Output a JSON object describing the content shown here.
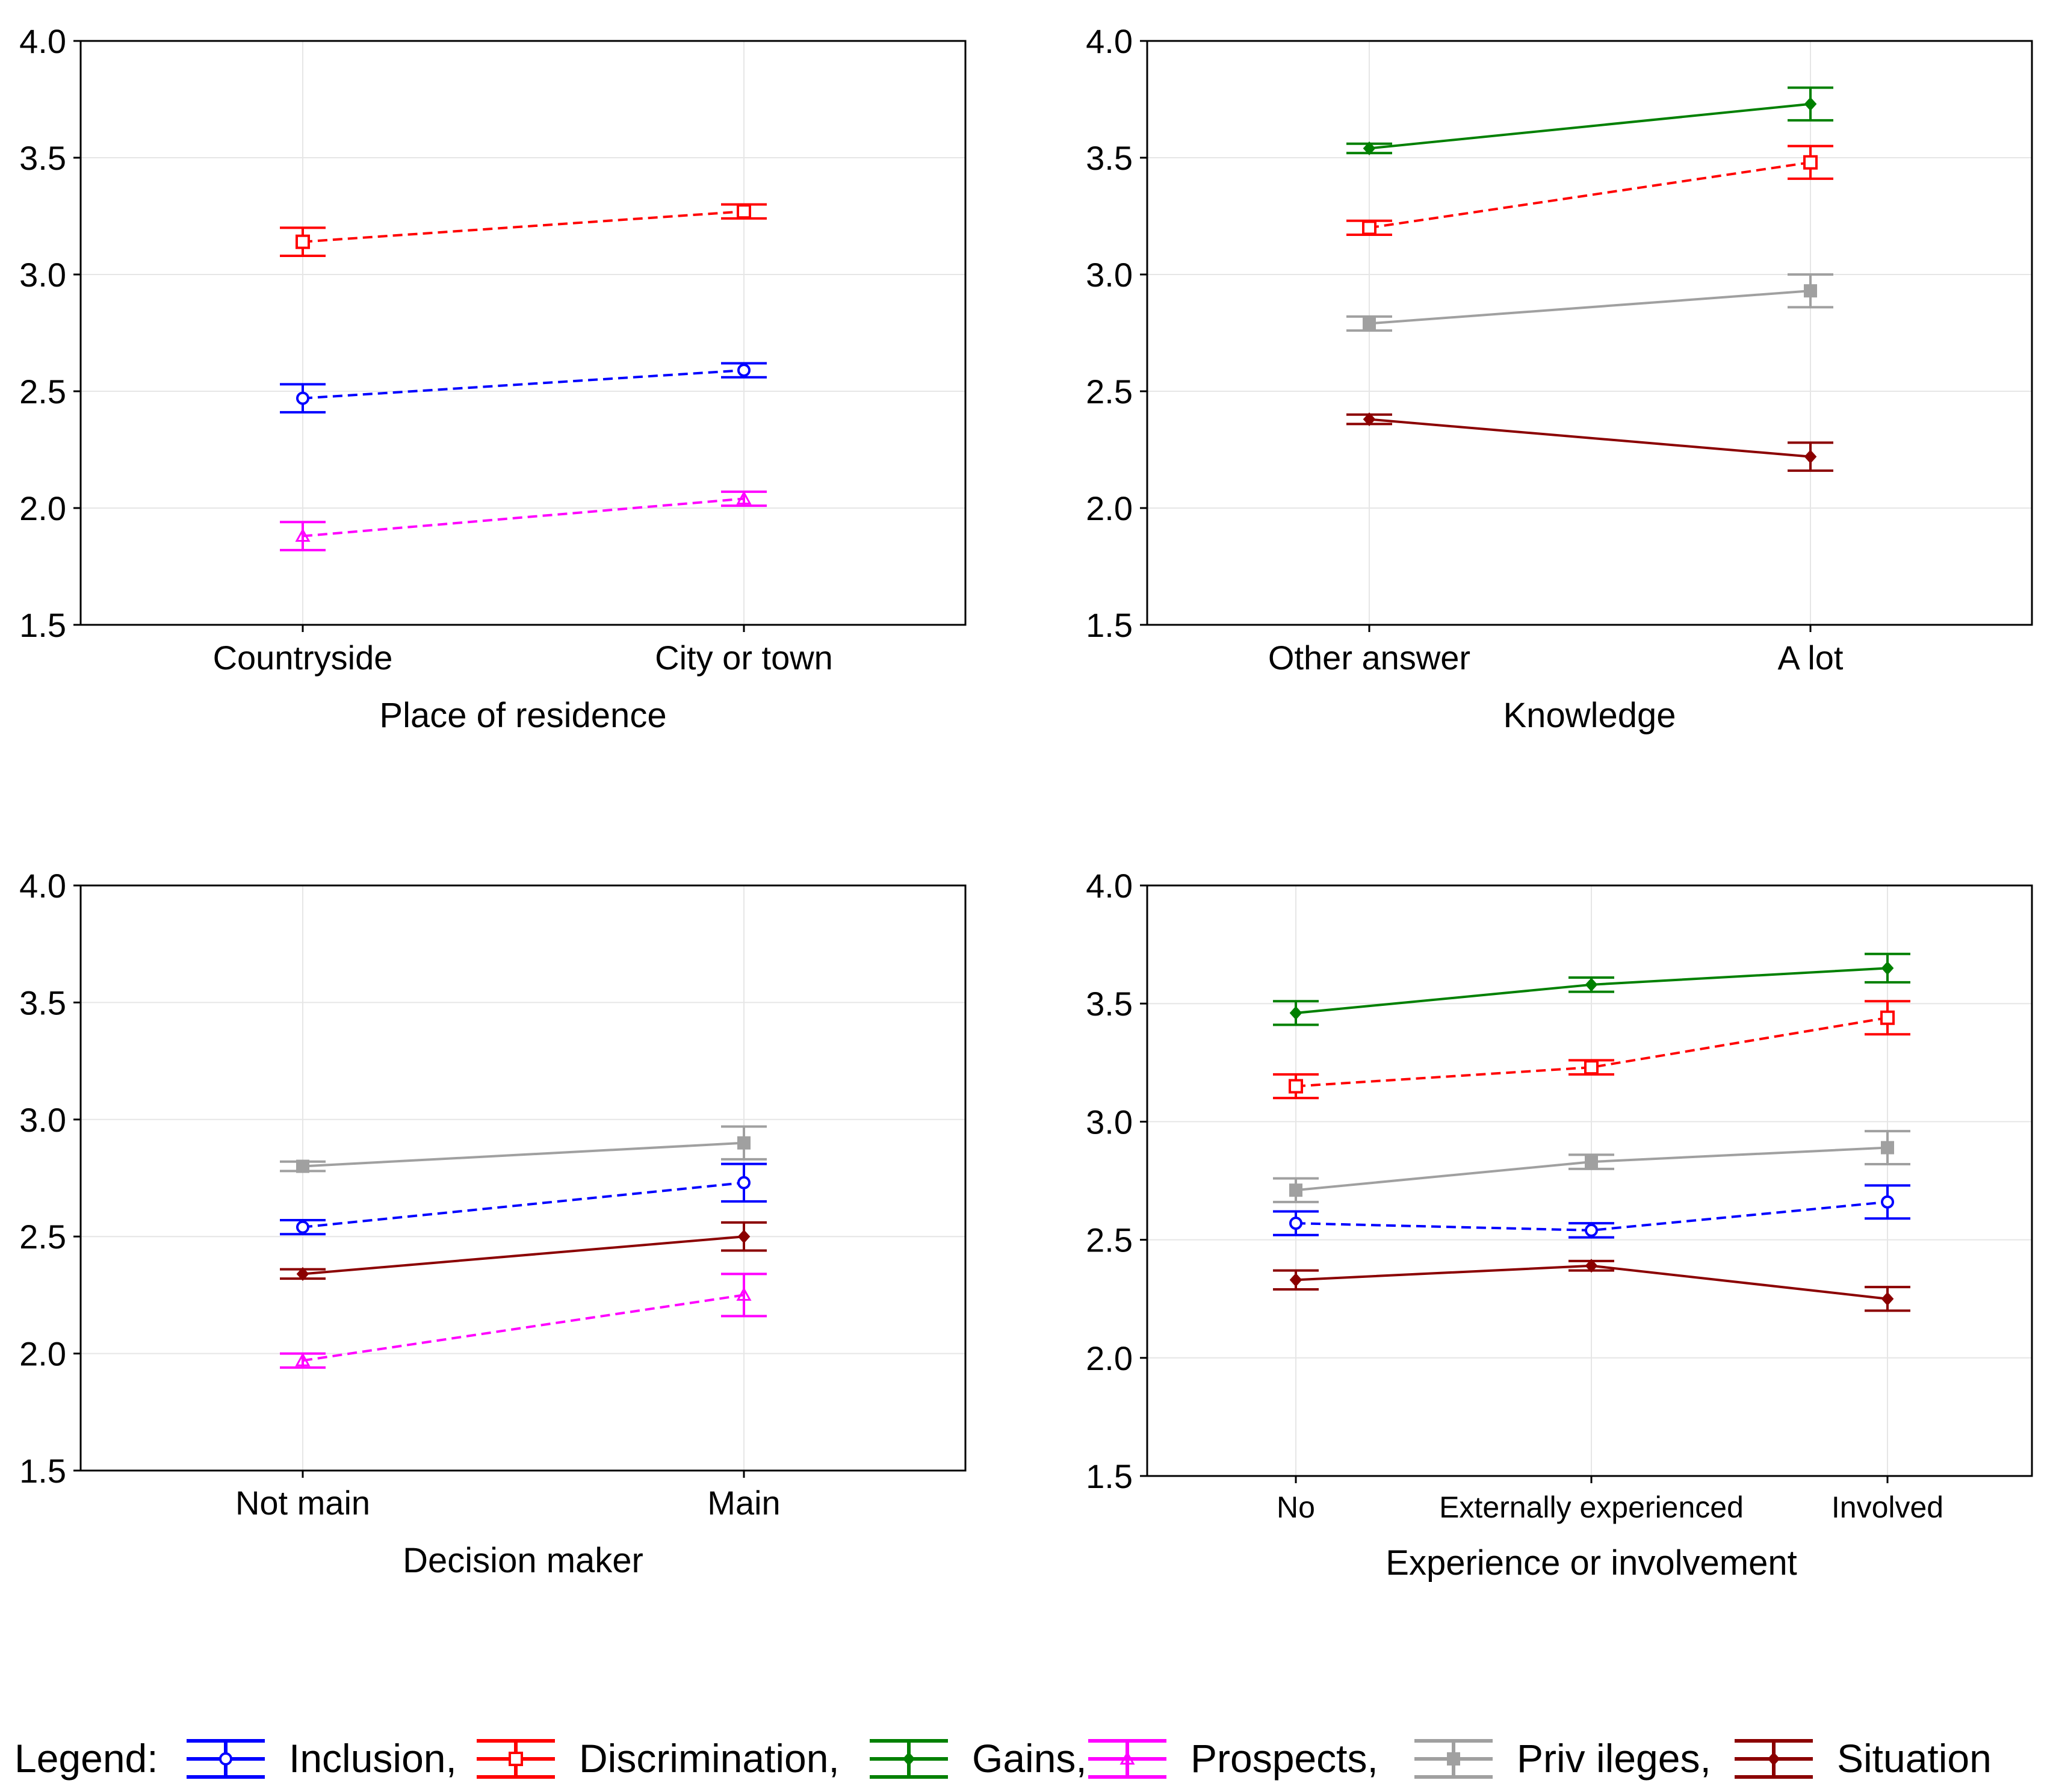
{
  "series_styles": {
    "Inclusion": {
      "color": "#0000ff",
      "dash": true,
      "marker": "circle"
    },
    "Discrimination": {
      "color": "#ff0000",
      "dash": true,
      "marker": "square"
    },
    "Gains": {
      "color": "#008000",
      "dash": false,
      "marker": "diamond"
    },
    "Prospects": {
      "color": "#ff00ff",
      "dash": true,
      "marker": "triangle"
    },
    "Privileges": {
      "color": "#a0a0a0",
      "dash": false,
      "marker": "filled-square"
    },
    "Situation": {
      "color": "#8b0000",
      "dash": false,
      "marker": "diamond"
    }
  },
  "legend": {
    "title": "Legend:",
    "items": [
      "Inclusion,",
      "Discrimination,",
      "Gains,",
      "Prospects,",
      "Priv ileges,",
      "Situation"
    ],
    "series": [
      "Inclusion",
      "Discrimination",
      "Gains",
      "Prospects",
      "Privileges",
      "Situation"
    ]
  },
  "chart_data": [
    {
      "type": "line",
      "title": "",
      "xlabel": "Place of residence",
      "ylabel": "",
      "ylim": [
        1.5,
        4.0
      ],
      "yticks": [
        "1.5",
        "2.0",
        "2.5",
        "3.0",
        "3.5",
        "4.0"
      ],
      "categories": [
        "Countryside",
        "City or town"
      ],
      "grid": true,
      "series": [
        {
          "name": "Discrimination",
          "values": [
            3.14,
            3.27
          ],
          "errors": [
            0.06,
            0.03
          ]
        },
        {
          "name": "Inclusion",
          "values": [
            2.47,
            2.59
          ],
          "errors": [
            0.06,
            0.03
          ]
        },
        {
          "name": "Prospects",
          "values": [
            1.88,
            2.04
          ],
          "errors": [
            0.06,
            0.03
          ]
        }
      ]
    },
    {
      "type": "line",
      "title": "",
      "xlabel": "Knowledge",
      "ylabel": "",
      "ylim": [
        1.5,
        4.0
      ],
      "yticks": [
        "1.5",
        "2.0",
        "2.5",
        "3.0",
        "3.5",
        "4.0"
      ],
      "categories": [
        "Other answer",
        "A lot"
      ],
      "grid": true,
      "series": [
        {
          "name": "Gains",
          "values": [
            3.54,
            3.73
          ],
          "errors": [
            0.02,
            0.07
          ]
        },
        {
          "name": "Discrimination",
          "values": [
            3.2,
            3.48
          ],
          "errors": [
            0.03,
            0.07
          ]
        },
        {
          "name": "Privileges",
          "values": [
            2.79,
            2.93
          ],
          "errors": [
            0.03,
            0.07
          ]
        },
        {
          "name": "Situation",
          "values": [
            2.38,
            2.22
          ],
          "errors": [
            0.02,
            0.06
          ]
        }
      ]
    },
    {
      "type": "line",
      "title": "",
      "xlabel": "Decision maker",
      "ylabel": "",
      "ylim": [
        1.5,
        4.0
      ],
      "yticks": [
        "1.5",
        "2.0",
        "2.5",
        "3.0",
        "3.5",
        "4.0"
      ],
      "categories": [
        "Not main",
        "Main"
      ],
      "grid": true,
      "series": [
        {
          "name": "Privileges",
          "values": [
            2.8,
            2.9
          ],
          "errors": [
            0.02,
            0.07
          ]
        },
        {
          "name": "Inclusion",
          "values": [
            2.54,
            2.73
          ],
          "errors": [
            0.03,
            0.08
          ]
        },
        {
          "name": "Situation",
          "values": [
            2.34,
            2.5
          ],
          "errors": [
            0.02,
            0.06
          ]
        },
        {
          "name": "Prospects",
          "values": [
            1.97,
            2.25
          ],
          "errors": [
            0.03,
            0.09
          ]
        }
      ]
    },
    {
      "type": "line",
      "title": "",
      "xlabel": "Experience or involvement",
      "ylabel": "",
      "ylim": [
        1.5,
        4.0
      ],
      "yticks": [
        "1.5",
        "2.0",
        "2.5",
        "3.0",
        "3.5",
        "4.0"
      ],
      "categories": [
        "No",
        "Externally experienced",
        "Involved"
      ],
      "grid": true,
      "series": [
        {
          "name": "Gains",
          "values": [
            3.46,
            3.58,
            3.65
          ],
          "errors": [
            0.05,
            0.03,
            0.06
          ]
        },
        {
          "name": "Discrimination",
          "values": [
            3.15,
            3.23,
            3.44
          ],
          "errors": [
            0.05,
            0.03,
            0.07
          ]
        },
        {
          "name": "Privileges",
          "values": [
            2.71,
            2.83,
            2.89
          ],
          "errors": [
            0.05,
            0.03,
            0.07
          ]
        },
        {
          "name": "Inclusion",
          "values": [
            2.57,
            2.54,
            2.66
          ],
          "errors": [
            0.05,
            0.03,
            0.07
          ]
        },
        {
          "name": "Situation",
          "values": [
            2.33,
            2.39,
            2.25
          ],
          "errors": [
            0.04,
            0.02,
            0.05
          ]
        }
      ]
    }
  ]
}
